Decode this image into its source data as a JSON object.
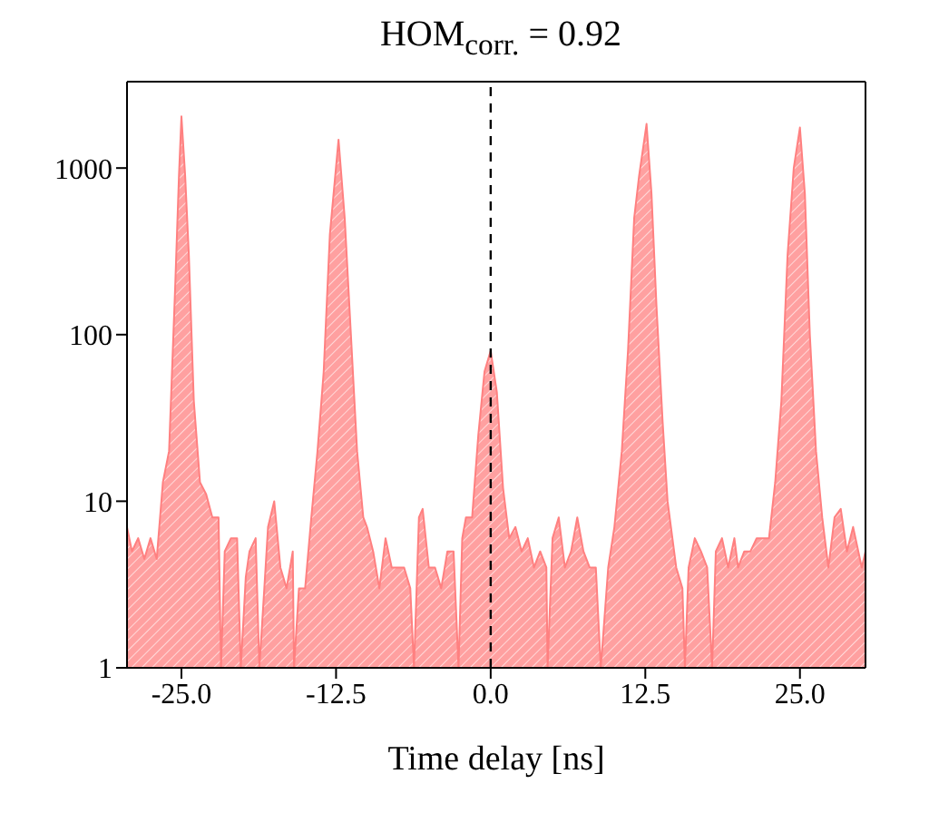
{
  "chart_data": {
    "type": "area",
    "title": "HOM$_{corr.}$ = 0.92",
    "xlabel": "Time delay [ns]",
    "xlim": [
      -29.4,
      30.3
    ],
    "xticks": [
      {
        "value": -25,
        "label": "-25.0"
      },
      {
        "value": -12.5,
        "label": "-12.5"
      },
      {
        "value": 0,
        "label": "0.0"
      },
      {
        "value": 12.5,
        "label": "12.5"
      },
      {
        "value": 25,
        "label": "25.0"
      }
    ],
    "ylim": [
      1,
      3300
    ],
    "yticks": [
      1,
      10,
      100,
      1000
    ],
    "log": true,
    "ref_lines": [
      {
        "axis": "x",
        "value": 0,
        "color": "#000000",
        "line_style": "dashed"
      }
    ],
    "series": [
      {
        "color": "#ff8080",
        "x": [
          -29.4,
          -29,
          -28.5,
          -28,
          -27.5,
          -27,
          -26.5,
          -26,
          -25.5,
          -25.2,
          -25,
          -24.7,
          -24.4,
          -24,
          -23.5,
          -23,
          -22.5,
          -22,
          -21.8,
          -21.5,
          -21,
          -20.5,
          -20.2,
          -19.8,
          -19.5,
          -19,
          -18.7,
          -18.3,
          -18,
          -17.5,
          -17,
          -16.5,
          -16,
          -15.9,
          -15.5,
          -15,
          -14.5,
          -14,
          -13.5,
          -13,
          -12.3,
          -11.8,
          -11.3,
          -10.8,
          -10.3,
          -10,
          -9.5,
          -9,
          -8.5,
          -8,
          -7.5,
          -7,
          -6.5,
          -6.2,
          -5.8,
          -5.5,
          -5,
          -4.5,
          -4,
          -3.5,
          -3,
          -2.6,
          -2.3,
          -2,
          -1.5,
          -1,
          -0.5,
          0,
          0.5,
          1,
          1.5,
          2,
          2.5,
          3,
          3.5,
          4,
          4.5,
          4.6,
          5,
          5.5,
          6,
          6.5,
          7,
          7.5,
          8,
          8.5,
          8.9,
          9.5,
          10,
          10.6,
          11.1,
          11.6,
          12,
          12.6,
          13,
          13.4,
          13.9,
          14.3,
          15,
          15.5,
          15.7,
          16,
          16.5,
          17,
          17.5,
          17.9,
          18.2,
          18.7,
          19.2,
          19.7,
          20,
          20.5,
          21,
          21.5,
          22,
          22.5,
          23,
          23.5,
          24,
          24.5,
          25,
          25.4,
          25.8,
          26.3,
          26.8,
          27.3,
          27.8,
          28.3,
          28.8,
          29.3,
          30,
          30.3
        ],
        "values": [
          7,
          5,
          6,
          4.5,
          6,
          4.5,
          13,
          20,
          200,
          900,
          2040,
          900,
          300,
          40,
          13,
          11,
          8,
          8,
          1,
          5,
          6,
          6,
          1,
          3.5,
          5,
          6,
          1,
          3,
          7,
          10,
          4,
          3,
          5,
          1,
          3,
          3,
          8,
          20,
          60,
          400,
          1480,
          500,
          100,
          20,
          8,
          7,
          5,
          3,
          6,
          4,
          4,
          4,
          3,
          1,
          8,
          9,
          4,
          4,
          3,
          5,
          5,
          1,
          6,
          8,
          8,
          25,
          60,
          80,
          45,
          12,
          6,
          7,
          5,
          6,
          4,
          5,
          4,
          1,
          6,
          8,
          4,
          5,
          8,
          5,
          4,
          4,
          1,
          4,
          7,
          20,
          80,
          500,
          900,
          1840,
          700,
          150,
          30,
          10,
          4,
          3,
          1,
          4,
          6,
          5,
          4,
          1,
          5,
          6,
          4,
          6,
          4,
          5,
          5,
          6,
          6,
          6,
          13,
          40,
          300,
          1000,
          1750,
          700,
          100,
          20,
          8,
          4,
          8,
          9,
          5,
          7,
          4,
          5
        ]
      }
    ]
  }
}
